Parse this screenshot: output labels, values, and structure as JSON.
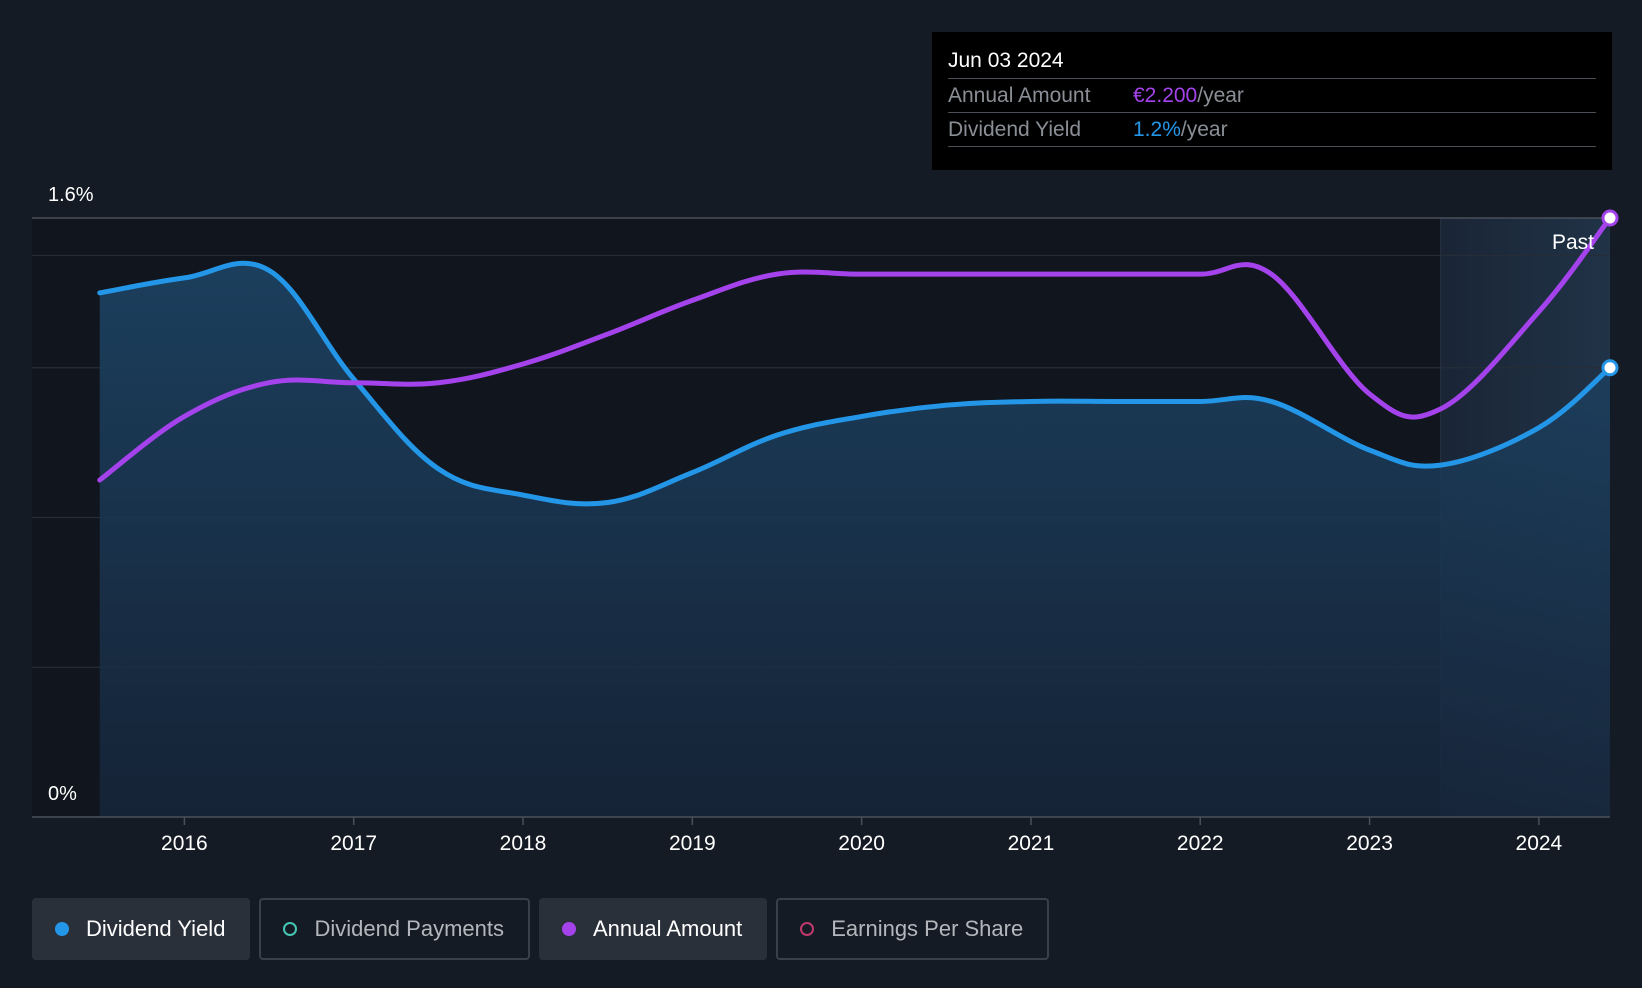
{
  "tooltip": {
    "date": "Jun 03 2024",
    "rows": [
      {
        "label": "Annual Amount",
        "value": "€2.200",
        "unit": "/year",
        "color": "#a443ec"
      },
      {
        "label": "Dividend Yield",
        "value": "1.2%",
        "unit": "/year",
        "color": "#2496e8"
      }
    ]
  },
  "legend": [
    {
      "label": "Dividend Yield",
      "active": true,
      "color": "#2496e8",
      "filled": true
    },
    {
      "label": "Dividend Payments",
      "active": false,
      "color": "#45c6b3",
      "filled": false
    },
    {
      "label": "Annual Amount",
      "active": true,
      "color": "#a443ec",
      "filled": true
    },
    {
      "label": "Earnings Per Share",
      "active": false,
      "color": "#c0396d",
      "filled": false
    }
  ],
  "chart_data": {
    "type": "line",
    "ylabel_top": "1.6%",
    "ylabel_bottom": "0%",
    "ylim": [
      0,
      1.6
    ],
    "xlim": [
      2015.1,
      2024.42
    ],
    "x_ticks": [
      "2016",
      "2017",
      "2018",
      "2019",
      "2020",
      "2021",
      "2022",
      "2023",
      "2024"
    ],
    "past_label": "Past",
    "past_start": 2023.42,
    "grid": true,
    "series": [
      {
        "name": "Dividend Yield",
        "color": "#2496e8",
        "area": true,
        "x": [
          2015.5,
          2016.0,
          2016.5,
          2017.0,
          2017.5,
          2018.0,
          2018.5,
          2019.0,
          2019.5,
          2020.0,
          2020.5,
          2021.0,
          2021.5,
          2022.0,
          2022.42,
          2023.0,
          2023.42,
          2024.0,
          2024.42
        ],
        "y": [
          1.4,
          1.44,
          1.46,
          1.17,
          0.93,
          0.86,
          0.84,
          0.92,
          1.02,
          1.07,
          1.1,
          1.11,
          1.11,
          1.11,
          1.11,
          0.98,
          0.94,
          1.04,
          1.2
        ]
      },
      {
        "name": "Annual Amount",
        "color": "#a443ec",
        "area": false,
        "x": [
          2015.5,
          2016.0,
          2016.5,
          2017.0,
          2017.5,
          2018.0,
          2018.5,
          2019.0,
          2019.5,
          2020.0,
          2020.5,
          2021.0,
          2021.5,
          2022.0,
          2022.42,
          2023.0,
          2023.42,
          2024.0,
          2024.42
        ],
        "y": [
          0.9,
          1.07,
          1.16,
          1.16,
          1.16,
          1.21,
          1.29,
          1.38,
          1.45,
          1.45,
          1.45,
          1.45,
          1.45,
          1.45,
          1.45,
          1.13,
          1.09,
          1.35,
          1.6
        ]
      }
    ]
  }
}
